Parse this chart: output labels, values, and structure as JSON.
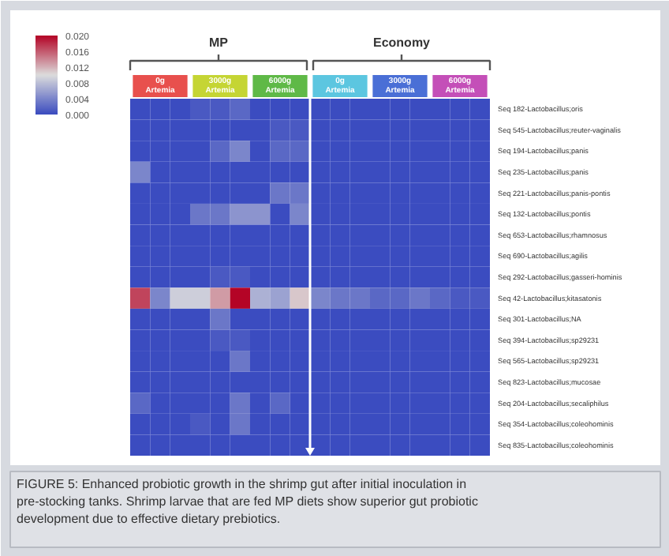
{
  "chart_data": {
    "type": "heatmap",
    "categories": [
      null,
      null,
      null,
      null,
      null,
      null,
      null,
      null,
      null,
      null,
      null,
      null,
      null,
      null,
      null,
      null,
      null,
      null
    ],
    "y_categories": [
      "Seq 182-Lactobacillus;oris",
      "Seq 545-Lactobacillus;reuter-vaginalis",
      "Seq 194-Lactobacillus;panis",
      "Seq 235-Lactobacillus;panis",
      "Seq 221-Lactobacillus;panis-pontis",
      "Seq 132-Lactobacillus;pontis",
      "Seq 653-Lactobacillus;rhamnosus",
      "Seq 690-Lactobacillus;agilis",
      "Seq 292-Lactobacillus;gasseri-hominis",
      "Seq 42-Lactobacillus;kitasatonis",
      "Seq 301-Lactobacillus;NA",
      "Seq 394-Lactobacillus;sp29231",
      "Seq 565-Lactobacillus;sp29231",
      "Seq 823-Lactobacillus;mucosae",
      "Seq 204-Lactobacillus;secaliphilus",
      "Seq 354-Lactobacillus;coleohominis",
      "Seq 835-Lactobacillus;coleohominis"
    ],
    "cells": [
      [
        0.0,
        0.0,
        0.0,
        0.001,
        0.001,
        0.002,
        0.0,
        0.0,
        0.0,
        0.0,
        0.0,
        0.0,
        0.0,
        0.0,
        0.0,
        0.0,
        0.0,
        0.0
      ],
      [
        0.0,
        0.0,
        0.0,
        0.0,
        0.0,
        0.0,
        0.0,
        0.001,
        0.001,
        0.0,
        0.0,
        0.0,
        0.0,
        0.0,
        0.0,
        0.0,
        0.0,
        0.0
      ],
      [
        0.0,
        0.0,
        0.0,
        0.0,
        0.002,
        0.004,
        0.0,
        0.002,
        0.002,
        0.0,
        0.0,
        0.0,
        0.0,
        0.0,
        0.0,
        0.0,
        0.0,
        0.0
      ],
      [
        0.004,
        0.0,
        0.0,
        0.0,
        0.0,
        0.0,
        0.0,
        0.0,
        0.0,
        0.0,
        0.0,
        0.0,
        0.0,
        0.0,
        0.0,
        0.0,
        0.0,
        0.0
      ],
      [
        0.0,
        0.0,
        0.0,
        0.0,
        0.0,
        0.0,
        0.0,
        0.003,
        0.003,
        0.0,
        0.0,
        0.0,
        0.0,
        0.0,
        0.0,
        0.0,
        0.0,
        0.0
      ],
      [
        0.0,
        0.0,
        0.0,
        0.003,
        0.003,
        0.005,
        0.005,
        0.0,
        0.004,
        0.0,
        0.0,
        0.0,
        0.0,
        0.0,
        0.0,
        0.0,
        0.0,
        0.0
      ],
      [
        0.0,
        0.0,
        0.0,
        0.0,
        0.0,
        0.0,
        0.0,
        0.0,
        0.0,
        0.0,
        0.0,
        0.0,
        0.0,
        0.0,
        0.0,
        0.0,
        0.0,
        0.0
      ],
      [
        0.0,
        0.0,
        0.0,
        0.0,
        0.0,
        0.0,
        0.0,
        0.0,
        0.0,
        0.0,
        0.0,
        0.0,
        0.0,
        0.0,
        0.0,
        0.0,
        0.0,
        0.0
      ],
      [
        0.0,
        0.0,
        0.0,
        0.0,
        0.001,
        0.001,
        0.0,
        0.0,
        0.0,
        0.0,
        0.0,
        0.0,
        0.0,
        0.0,
        0.0,
        0.0,
        0.0,
        0.0
      ],
      [
        0.017,
        0.004,
        0.009,
        0.009,
        0.013,
        0.02,
        0.007,
        0.006,
        0.011,
        0.004,
        0.003,
        0.003,
        0.002,
        0.002,
        0.003,
        0.002,
        0.001,
        0.001
      ],
      [
        0.0,
        0.0,
        0.0,
        0.0,
        0.003,
        0.0,
        0.0,
        0.0,
        0.0,
        0.0,
        0.0,
        0.0,
        0.0,
        0.0,
        0.0,
        0.0,
        0.0,
        0.0
      ],
      [
        0.0,
        0.0,
        0.0,
        0.0,
        0.001,
        0.001,
        0.0,
        0.0,
        0.0,
        0.0,
        0.0,
        0.0,
        0.0,
        0.0,
        0.0,
        0.0,
        0.0,
        0.0
      ],
      [
        0.0,
        0.0,
        0.0,
        0.0,
        0.0,
        0.003,
        0.0,
        0.0,
        0.0,
        0.0,
        0.0,
        0.0,
        0.0,
        0.0,
        0.0,
        0.0,
        0.0,
        0.0
      ],
      [
        0.0,
        0.0,
        0.0,
        0.0,
        0.0,
        0.0,
        0.0,
        0.0,
        0.0,
        0.0,
        0.0,
        0.0,
        0.0,
        0.0,
        0.0,
        0.0,
        0.0,
        0.0
      ],
      [
        0.002,
        0.0,
        0.0,
        0.0,
        0.0,
        0.003,
        0.0,
        0.002,
        0.0,
        0.0,
        0.0,
        0.0,
        0.0,
        0.0,
        0.0,
        0.0,
        0.0,
        0.0
      ],
      [
        0.0,
        0.0,
        0.0,
        0.001,
        0.0,
        0.003,
        0.0,
        0.0,
        0.0,
        0.0,
        0.0,
        0.0,
        0.0,
        0.0,
        0.0,
        0.0,
        0.0,
        0.0
      ],
      [
        0.0,
        0.0,
        0.0,
        0.0,
        0.0,
        0.0,
        0.0,
        0.0,
        0.0,
        0.0,
        0.0,
        0.0,
        0.0,
        0.0,
        0.0,
        0.0,
        0.0,
        0.0
      ]
    ],
    "clim": [
      0.0,
      0.02
    ],
    "cticks": [
      {
        "value": 0.0,
        "label": "0.000"
      },
      {
        "value": 0.004,
        "label": "0.004"
      },
      {
        "value": 0.008,
        "label": "0.008"
      },
      {
        "value": 0.012,
        "label": "0.012"
      },
      {
        "value": 0.016,
        "label": "0.016"
      },
      {
        "value": 0.02,
        "label": "0.020"
      }
    ],
    "annotations": [
      "MP",
      "Economy",
      "0g Artemia",
      "3000g Artemia",
      "6000g Artemia",
      "0g Artemia",
      "3000g Artemia",
      "6000g Artemia",
      "FIGURE 5: Enhanced probiotic growth in the shrimp gut after initial inoculation in pre-stocking tanks. Shrimp larvae that are fed MP diets show superior gut probiotic development due to effective dietary prebiotics."
    ]
  }
}
